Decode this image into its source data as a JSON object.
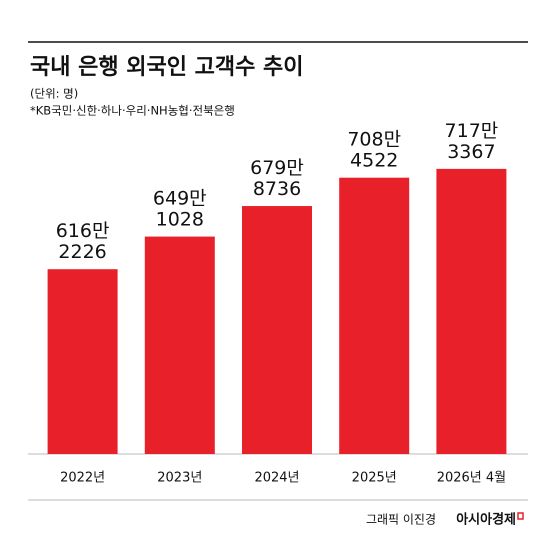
{
  "chart_data": {
    "type": "bar",
    "title": "국내 은행 외국인 고객수 추이",
    "subtitle": "(단위: 명)",
    "note": "*KB국민·신한·하나·우리·NH농협·전북은행",
    "categories": [
      "2022년",
      "2023년",
      "2024년",
      "2025년",
      "2026년 4월"
    ],
    "values": [
      6162226,
      6491028,
      6798736,
      7084522,
      7173367
    ],
    "value_labels": [
      "616만\n2226",
      "649만\n1028",
      "679만\n8736",
      "708만\n4522",
      "717만\n3367"
    ],
    "color": "#e8202a",
    "ylim": [
      4300000,
      8200000
    ],
    "credit": "그래픽 이진경",
    "publisher": "아시아경제"
  }
}
